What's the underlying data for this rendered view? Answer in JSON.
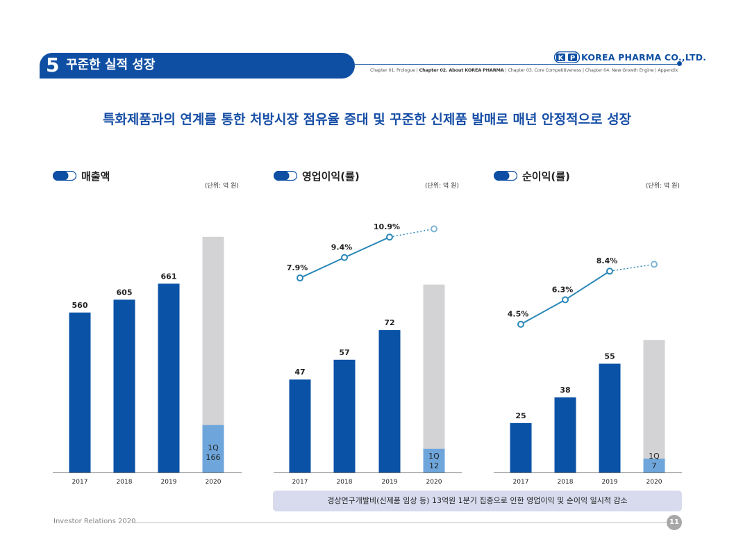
{
  "header": {
    "section_number": "5",
    "section_title": "꾸준한 실적 성장",
    "logo_letters": [
      "K",
      "P"
    ],
    "company": "KOREA PHARMA CO.,LTD.",
    "chapters": [
      {
        "label": "Chapter 01. Prologue",
        "active": false
      },
      {
        "label": "Chapter 02. About KOREA PHARMA",
        "active": true
      },
      {
        "label": "Chapter 03. Core Competitiveness",
        "active": false
      },
      {
        "label": "Chapter 04. New Growth Engine",
        "active": false
      },
      {
        "label": "Appendix",
        "active": false
      }
    ]
  },
  "headline": "특화제품과의 연계를 통한 처방시장 점유율 증대 및 꾸준한 신제품 발매로 매년 안정적으로 성장",
  "colors": {
    "primary": "#0a52a6",
    "highlight": "#6ea6dc",
    "projection": "#d3d3d5",
    "line": "#2a87b8",
    "brand": "#0f4fa3"
  },
  "chart_data": [
    {
      "type": "bar",
      "title": "매출액",
      "unit": "(단위: 억 원)",
      "categories": [
        "2017",
        "2018",
        "2019",
        "2020"
      ],
      "values": [
        560,
        605,
        661,
        166
      ],
      "value_labels": [
        "560",
        "605",
        "661",
        "1Q\n166"
      ],
      "projection_2020": 825,
      "ylim": [
        0,
        900
      ]
    },
    {
      "type": "bar",
      "title": "영업이익(률)",
      "unit": "(단위: 억 원)",
      "categories": [
        "2017",
        "2018",
        "2019",
        "2020"
      ],
      "values": [
        47,
        57,
        72,
        12
      ],
      "value_labels": [
        "47",
        "57",
        "72",
        "1Q\n12"
      ],
      "projection_2020": 95,
      "ylim": [
        0,
        130
      ],
      "margin_line": {
        "values": [
          7.9,
          9.4,
          10.9,
          11.5
        ],
        "labels": [
          "7.9%",
          "9.4%",
          "10.9%",
          ""
        ],
        "dotted_last": true,
        "ylim": [
          0,
          13
        ]
      }
    },
    {
      "type": "bar",
      "title": "순이익(률)",
      "unit": "(단위: 억 원)",
      "categories": [
        "2017",
        "2018",
        "2019",
        "2020"
      ],
      "values": [
        25,
        38,
        55,
        7
      ],
      "value_labels": [
        "25",
        "38",
        "55",
        "1Q\n7"
      ],
      "projection_2020": 67,
      "ylim": [
        0,
        130
      ],
      "margin_line": {
        "values": [
          4.5,
          6.3,
          8.4,
          8.9
        ],
        "labels": [
          "4.5%",
          "6.3%",
          "8.4%",
          ""
        ],
        "dotted_last": true,
        "ylim": [
          0,
          13
        ]
      }
    }
  ],
  "note": "경상연구개발비(신제품 임상 등) 13억원 1분기 집중으로 인한 영업이익 및 순이익 일시적 감소",
  "footer": {
    "text": "Investor Relations 2020",
    "page": "11"
  }
}
